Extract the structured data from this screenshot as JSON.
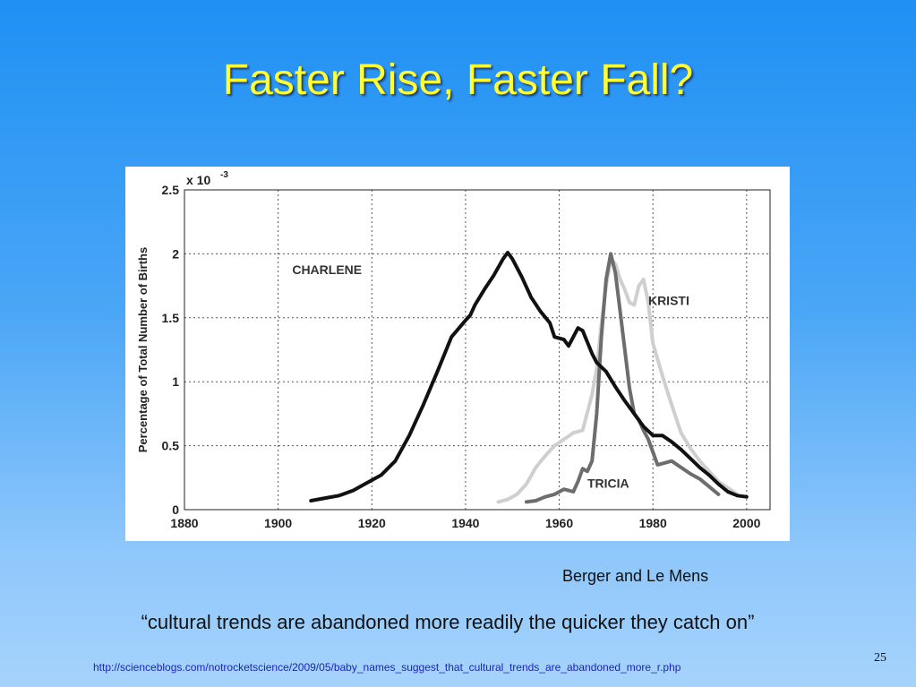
{
  "slide": {
    "title": "Faster Rise, Faster Fall?",
    "credit": "Berger and Le Mens",
    "quote": "“cultural trends are abandoned more readily the quicker they catch on”",
    "page_number": "25",
    "url": "http://scienceblogs.com/notrocketscience/2009/05/baby_names_suggest_that_cultural_trends_are_abandoned_more_r.php"
  },
  "chart_data": {
    "type": "line",
    "title": "",
    "xlabel": "",
    "ylabel": "Percentage of Total Number of Births",
    "y_multiplier": "x 10",
    "y_multiplier_exponent": "-3",
    "xlim": [
      1880,
      2005
    ],
    "ylim": [
      0,
      2.5
    ],
    "x_ticks": [
      1880,
      1900,
      1920,
      1940,
      1960,
      1980,
      2000
    ],
    "x_tick_labels": [
      "1880",
      "1900",
      "1920",
      "1940",
      "1960",
      "1980",
      "2000"
    ],
    "y_ticks": [
      0,
      0.5,
      1,
      1.5,
      2,
      2.5
    ],
    "y_tick_labels": [
      "0",
      "0.5",
      "1",
      "1.5",
      "2",
      "2.5"
    ],
    "grid": true,
    "series": [
      {
        "name": "CHARLENE",
        "color": "#111111",
        "x": [
          1907,
          1910,
          1913,
          1916,
          1919,
          1922,
          1925,
          1928,
          1931,
          1934,
          1937,
          1940,
          1941,
          1942,
          1944,
          1946,
          1948,
          1949,
          1950,
          1952,
          1954,
          1956,
          1958,
          1959,
          1961,
          1962,
          1964,
          1965,
          1967,
          1968,
          1970,
          1972,
          1974,
          1976,
          1978,
          1980,
          1982,
          1984,
          1986,
          1988,
          1990,
          1992,
          1994,
          1996,
          1998,
          2000
        ],
        "y": [
          0.07,
          0.09,
          0.11,
          0.15,
          0.21,
          0.27,
          0.38,
          0.58,
          0.82,
          1.08,
          1.35,
          1.48,
          1.52,
          1.6,
          1.72,
          1.83,
          1.96,
          2.01,
          1.96,
          1.82,
          1.66,
          1.55,
          1.46,
          1.35,
          1.33,
          1.28,
          1.42,
          1.4,
          1.22,
          1.15,
          1.08,
          0.96,
          0.85,
          0.75,
          0.65,
          0.58,
          0.58,
          0.53,
          0.47,
          0.4,
          0.33,
          0.27,
          0.2,
          0.14,
          0.11,
          0.1
        ]
      },
      {
        "name": "KRISTI",
        "color": "#cfcfcf",
        "x": [
          1947,
          1949,
          1951,
          1953,
          1955,
          1957,
          1959,
          1961,
          1963,
          1965,
          1967,
          1968,
          1969,
          1970,
          1971,
          1972,
          1973,
          1974,
          1975,
          1976,
          1977,
          1978,
          1979,
          1980,
          1982,
          1984,
          1986,
          1988,
          1990,
          1992,
          1994,
          1996,
          1998
        ],
        "y": [
          0.06,
          0.08,
          0.12,
          0.2,
          0.33,
          0.42,
          0.5,
          0.55,
          0.6,
          0.62,
          0.9,
          1.1,
          1.45,
          1.75,
          1.96,
          1.92,
          1.8,
          1.72,
          1.62,
          1.6,
          1.75,
          1.8,
          1.62,
          1.3,
          1.05,
          0.82,
          0.6,
          0.48,
          0.38,
          0.3,
          0.22,
          0.17,
          0.12
        ]
      },
      {
        "name": "TRICIA",
        "color": "#6d6d6d",
        "x": [
          1953,
          1955,
          1957,
          1959,
          1961,
          1963,
          1964,
          1965,
          1966,
          1967,
          1968,
          1969,
          1970,
          1971,
          1972,
          1973,
          1974,
          1975,
          1976,
          1977,
          1978,
          1979,
          1980,
          1981,
          1982,
          1984,
          1986,
          1988,
          1990,
          1992,
          1994
        ],
        "y": [
          0.06,
          0.07,
          0.1,
          0.12,
          0.16,
          0.14,
          0.22,
          0.32,
          0.3,
          0.38,
          0.75,
          1.35,
          1.8,
          2.0,
          1.85,
          1.55,
          1.25,
          0.95,
          0.75,
          0.7,
          0.62,
          0.55,
          0.45,
          0.35,
          0.36,
          0.38,
          0.33,
          0.28,
          0.24,
          0.18,
          0.12
        ]
      }
    ],
    "annotations": [
      {
        "text": "CHARLENE",
        "x": 1903,
        "y": 1.84
      },
      {
        "text": "KRISTI",
        "x": 1979,
        "y": 1.6
      },
      {
        "text": "TRICIA",
        "x": 1966,
        "y": 0.17
      }
    ]
  }
}
